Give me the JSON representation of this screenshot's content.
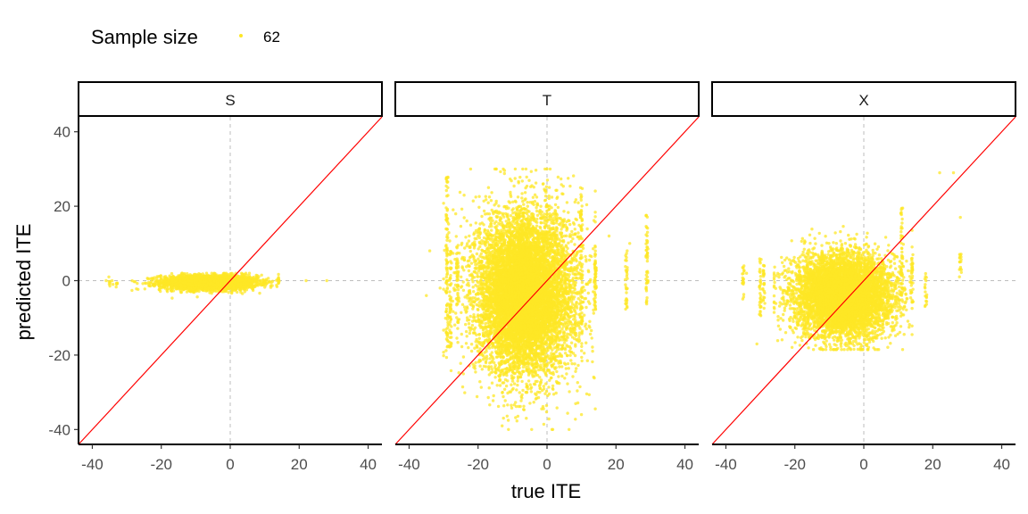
{
  "chart_data": {
    "type": "scatter",
    "xlabel": "true ITE",
    "ylabel": "predicted ITE",
    "xlim": [
      -44,
      44
    ],
    "ylim": [
      -44,
      44
    ],
    "x_ticks": [
      -40,
      -20,
      0,
      20,
      40
    ],
    "y_ticks": [
      -40,
      -20,
      0,
      20,
      40
    ],
    "grid": false,
    "reference_lines": {
      "vertical_x": 0,
      "horizontal_y": 0,
      "diagonal": "y = x"
    },
    "legend": {
      "title": "Sample size",
      "entries": [
        "62"
      ],
      "position": "top-left"
    },
    "colors": {
      "points": "#FDE725",
      "diagonal": "#FF0000",
      "reference": "#BEBEBE"
    },
    "panels": [
      {
        "label": "S",
        "clusters": [
          {
            "cx": -6,
            "cy": -0.5,
            "sx": 7,
            "sy": 1.0,
            "xmin": -36,
            "xmax": 14,
            "ymin": -5,
            "ymax": 2,
            "n": 2600
          }
        ],
        "columns": [
          {
            "x": -35,
            "ymin": -2,
            "ymax": 1
          },
          {
            "x": -33,
            "ymin": -2,
            "ymax": 1
          },
          {
            "x": 14,
            "ymin": -1,
            "ymax": 0.5
          }
        ],
        "outliers": [
          [
            -36,
            0
          ],
          [
            -34,
            -1
          ],
          [
            22,
            0
          ],
          [
            28,
            0
          ],
          [
            14,
            0.3
          ]
        ]
      },
      {
        "label": "T",
        "clusters": [
          {
            "cx": -6,
            "cy": -3,
            "sx": 7.5,
            "sy": 11,
            "xmin": -30,
            "xmax": 14,
            "ymin": -40,
            "ymax": 30,
            "n": 7000
          },
          {
            "cx": -8,
            "cy": -5,
            "sx": 4.5,
            "sy": 8,
            "xmin": -24,
            "xmax": 8,
            "ymin": -30,
            "ymax": 22,
            "n": 2500
          }
        ],
        "columns": [
          {
            "x": -29,
            "ymin": -20,
            "ymax": 28
          },
          {
            "x": -28,
            "ymin": -18,
            "ymax": 8
          },
          {
            "x": -26,
            "ymin": -12,
            "ymax": 10
          },
          {
            "x": 10,
            "ymin": -12,
            "ymax": 25
          },
          {
            "x": 14,
            "ymin": -8,
            "ymax": 10
          },
          {
            "x": 23,
            "ymin": -8,
            "ymax": 8
          },
          {
            "x": 29,
            "ymin": -7,
            "ymax": 18
          }
        ],
        "outliers": [
          [
            -34,
            8
          ],
          [
            -35,
            -4
          ],
          [
            -31,
            -2
          ],
          [
            10,
            -36
          ],
          [
            18,
            12
          ],
          [
            24,
            10
          ]
        ]
      },
      {
        "label": "X",
        "clusters": [
          {
            "cx": -6,
            "cy": -4,
            "sx": 7,
            "sy": 5.5,
            "xmin": -26,
            "xmax": 14,
            "ymin": -18.5,
            "ymax": 28,
            "n": 6500
          }
        ],
        "columns": [
          {
            "x": -35,
            "ymin": -5,
            "ymax": 4
          },
          {
            "x": -30,
            "ymin": -10,
            "ymax": 6
          },
          {
            "x": -29,
            "ymin": -8,
            "ymax": 5
          },
          {
            "x": 11,
            "ymin": -6,
            "ymax": 20
          },
          {
            "x": 14,
            "ymin": -6,
            "ymax": 7
          },
          {
            "x": 18,
            "ymin": -7,
            "ymax": 2
          },
          {
            "x": 28,
            "ymin": 0,
            "ymax": 8
          }
        ],
        "outliers": [
          [
            -34,
            2
          ],
          [
            -31,
            -17
          ],
          [
            22,
            29
          ],
          [
            28,
            17
          ],
          [
            26,
            29
          ]
        ]
      }
    ]
  }
}
